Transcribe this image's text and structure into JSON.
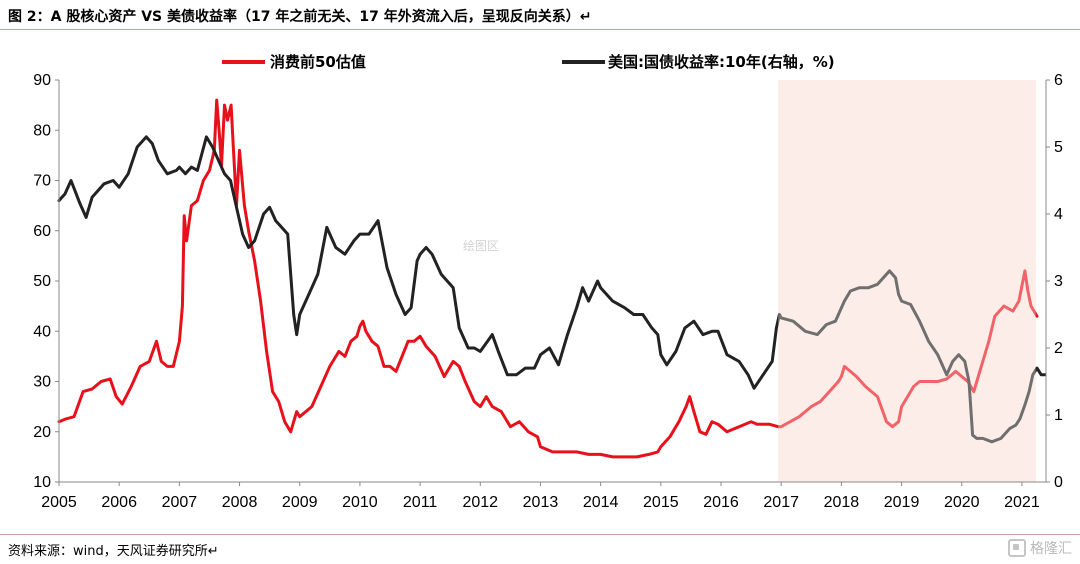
{
  "figure": {
    "title": "图 2：A 股核心资产  VS  美债收益率（17 年之前无关、17 年外资流入后，呈现反向关系）↵",
    "source": "资料来源：wind，天风证券研究所↵",
    "watermark": "绘图区",
    "corner_logo": "格隆汇"
  },
  "chart_data": {
    "type": "line",
    "x_axis": {
      "ticks": [
        "2005",
        "2006",
        "2007",
        "2008",
        "2009",
        "2010",
        "2011",
        "2012",
        "2013",
        "2014",
        "2015",
        "2016",
        "2017",
        "2018",
        "2019",
        "2020",
        "2021"
      ],
      "range": [
        2005.0,
        2021.4
      ]
    },
    "y_left": {
      "range": [
        10,
        90
      ],
      "ticks": [
        "10",
        "20",
        "30",
        "40",
        "50",
        "60",
        "70",
        "80",
        "90"
      ]
    },
    "y_right": {
      "range": [
        0,
        6
      ],
      "ticks": [
        "0",
        "1",
        "2",
        "3",
        "4",
        "5",
        "6"
      ]
    },
    "shaded_region": {
      "from": 2016.95,
      "to": 2021.23,
      "color": "#fce4dc"
    },
    "legend": {
      "position": "top-center"
    },
    "series": [
      {
        "name": "消费前50估值",
        "axis": "left",
        "color": "#e8101a",
        "points": [
          [
            2005.0,
            22
          ],
          [
            2005.1,
            22.5
          ],
          [
            2005.25,
            23
          ],
          [
            2005.4,
            28
          ],
          [
            2005.55,
            28.5
          ],
          [
            2005.7,
            30
          ],
          [
            2005.85,
            30.5
          ],
          [
            2005.95,
            27
          ],
          [
            2006.05,
            25.5
          ],
          [
            2006.2,
            29
          ],
          [
            2006.35,
            33
          ],
          [
            2006.5,
            34
          ],
          [
            2006.62,
            38
          ],
          [
            2006.7,
            34
          ],
          [
            2006.8,
            33
          ],
          [
            2006.9,
            33
          ],
          [
            2007.0,
            38
          ],
          [
            2007.05,
            45
          ],
          [
            2007.08,
            63
          ],
          [
            2007.12,
            58
          ],
          [
            2007.2,
            65
          ],
          [
            2007.3,
            66
          ],
          [
            2007.4,
            70
          ],
          [
            2007.5,
            72
          ],
          [
            2007.58,
            76
          ],
          [
            2007.62,
            86
          ],
          [
            2007.66,
            80
          ],
          [
            2007.7,
            73
          ],
          [
            2007.75,
            85
          ],
          [
            2007.8,
            82
          ],
          [
            2007.86,
            85
          ],
          [
            2007.9,
            76
          ],
          [
            2007.95,
            65
          ],
          [
            2008.0,
            76
          ],
          [
            2008.08,
            65
          ],
          [
            2008.15,
            60
          ],
          [
            2008.25,
            54
          ],
          [
            2008.35,
            46
          ],
          [
            2008.45,
            36
          ],
          [
            2008.55,
            28
          ],
          [
            2008.65,
            26
          ],
          [
            2008.75,
            22
          ],
          [
            2008.85,
            20
          ],
          [
            2008.95,
            24
          ],
          [
            2009.0,
            23
          ],
          [
            2009.2,
            25
          ],
          [
            2009.35,
            29
          ],
          [
            2009.5,
            33
          ],
          [
            2009.65,
            36
          ],
          [
            2009.75,
            35
          ],
          [
            2009.85,
            38
          ],
          [
            2009.95,
            39
          ],
          [
            2010.0,
            41
          ],
          [
            2010.05,
            42
          ],
          [
            2010.1,
            40
          ],
          [
            2010.2,
            38
          ],
          [
            2010.3,
            37
          ],
          [
            2010.4,
            33
          ],
          [
            2010.5,
            33
          ],
          [
            2010.6,
            32
          ],
          [
            2010.7,
            35
          ],
          [
            2010.8,
            38
          ],
          [
            2010.9,
            38
          ],
          [
            2011.0,
            39
          ],
          [
            2011.1,
            37
          ],
          [
            2011.25,
            35
          ],
          [
            2011.4,
            31
          ],
          [
            2011.55,
            34
          ],
          [
            2011.65,
            33
          ],
          [
            2011.75,
            30
          ],
          [
            2011.9,
            26
          ],
          [
            2012.0,
            25
          ],
          [
            2012.1,
            27
          ],
          [
            2012.2,
            25
          ],
          [
            2012.35,
            24
          ],
          [
            2012.5,
            21
          ],
          [
            2012.65,
            22
          ],
          [
            2012.8,
            20
          ],
          [
            2012.95,
            19
          ],
          [
            2013.0,
            17
          ],
          [
            2013.2,
            16
          ],
          [
            2013.4,
            16
          ],
          [
            2013.6,
            16
          ],
          [
            2013.8,
            15.5
          ],
          [
            2014.0,
            15.5
          ],
          [
            2014.2,
            15
          ],
          [
            2014.4,
            15
          ],
          [
            2014.6,
            15
          ],
          [
            2014.8,
            15.5
          ],
          [
            2014.95,
            16
          ],
          [
            2015.0,
            17
          ],
          [
            2015.15,
            19
          ],
          [
            2015.3,
            22
          ],
          [
            2015.42,
            25
          ],
          [
            2015.48,
            27
          ],
          [
            2015.55,
            24
          ],
          [
            2015.65,
            20
          ],
          [
            2015.75,
            19.5
          ],
          [
            2015.85,
            22
          ],
          [
            2015.95,
            21.5
          ],
          [
            2016.1,
            20
          ],
          [
            2016.3,
            21
          ],
          [
            2016.5,
            22
          ],
          [
            2016.6,
            21.5
          ],
          [
            2016.8,
            21.5
          ],
          [
            2016.95,
            21
          ],
          [
            2017.0,
            21
          ],
          [
            2017.15,
            22
          ],
          [
            2017.3,
            23
          ],
          [
            2017.5,
            25
          ],
          [
            2017.65,
            26
          ],
          [
            2017.8,
            28
          ],
          [
            2017.95,
            30
          ],
          [
            2018.0,
            31
          ],
          [
            2018.05,
            33
          ],
          [
            2018.15,
            32
          ],
          [
            2018.25,
            31
          ],
          [
            2018.4,
            29
          ],
          [
            2018.5,
            28
          ],
          [
            2018.6,
            27
          ],
          [
            2018.75,
            22
          ],
          [
            2018.85,
            21
          ],
          [
            2018.95,
            22
          ],
          [
            2019.0,
            25
          ],
          [
            2019.1,
            27
          ],
          [
            2019.2,
            29
          ],
          [
            2019.3,
            30
          ],
          [
            2019.45,
            30
          ],
          [
            2019.6,
            30
          ],
          [
            2019.75,
            30.5
          ],
          [
            2019.9,
            32
          ],
          [
            2020.0,
            31
          ],
          [
            2020.1,
            30
          ],
          [
            2020.2,
            28
          ],
          [
            2020.3,
            32
          ],
          [
            2020.45,
            38
          ],
          [
            2020.55,
            43
          ],
          [
            2020.7,
            45
          ],
          [
            2020.85,
            44
          ],
          [
            2020.95,
            46
          ],
          [
            2021.05,
            52
          ],
          [
            2021.1,
            48
          ],
          [
            2021.15,
            45
          ],
          [
            2021.2,
            44
          ],
          [
            2021.25,
            43
          ]
        ]
      },
      {
        "name": "美国:国债收益率:10年(右轴，%)",
        "axis": "right",
        "color": "#222222",
        "points": [
          [
            2005.0,
            4.2
          ],
          [
            2005.1,
            4.3
          ],
          [
            2005.2,
            4.5
          ],
          [
            2005.35,
            4.15
          ],
          [
            2005.45,
            3.95
          ],
          [
            2005.55,
            4.25
          ],
          [
            2005.75,
            4.45
          ],
          [
            2005.9,
            4.5
          ],
          [
            2006.0,
            4.4
          ],
          [
            2006.15,
            4.6
          ],
          [
            2006.3,
            5.0
          ],
          [
            2006.45,
            5.15
          ],
          [
            2006.55,
            5.05
          ],
          [
            2006.65,
            4.8
          ],
          [
            2006.8,
            4.6
          ],
          [
            2006.95,
            4.65
          ],
          [
            2007.0,
            4.7
          ],
          [
            2007.1,
            4.6
          ],
          [
            2007.2,
            4.7
          ],
          [
            2007.3,
            4.65
          ],
          [
            2007.45,
            5.15
          ],
          [
            2007.55,
            5.0
          ],
          [
            2007.65,
            4.8
          ],
          [
            2007.75,
            4.6
          ],
          [
            2007.85,
            4.5
          ],
          [
            2007.95,
            4.1
          ],
          [
            2008.05,
            3.7
          ],
          [
            2008.15,
            3.5
          ],
          [
            2008.25,
            3.6
          ],
          [
            2008.4,
            4.0
          ],
          [
            2008.5,
            4.1
          ],
          [
            2008.6,
            3.9
          ],
          [
            2008.7,
            3.8
          ],
          [
            2008.8,
            3.7
          ],
          [
            2008.9,
            2.5
          ],
          [
            2008.95,
            2.2
          ],
          [
            2009.0,
            2.5
          ],
          [
            2009.15,
            2.8
          ],
          [
            2009.3,
            3.1
          ],
          [
            2009.45,
            3.8
          ],
          [
            2009.6,
            3.5
          ],
          [
            2009.75,
            3.4
          ],
          [
            2009.9,
            3.6
          ],
          [
            2010.0,
            3.7
          ],
          [
            2010.15,
            3.7
          ],
          [
            2010.3,
            3.9
          ],
          [
            2010.45,
            3.2
          ],
          [
            2010.6,
            2.8
          ],
          [
            2010.75,
            2.5
          ],
          [
            2010.85,
            2.6
          ],
          [
            2010.95,
            3.3
          ],
          [
            2011.0,
            3.4
          ],
          [
            2011.1,
            3.5
          ],
          [
            2011.2,
            3.4
          ],
          [
            2011.35,
            3.1
          ],
          [
            2011.55,
            2.9
          ],
          [
            2011.65,
            2.3
          ],
          [
            2011.8,
            2.0
          ],
          [
            2011.9,
            2.0
          ],
          [
            2012.0,
            1.95
          ],
          [
            2012.2,
            2.2
          ],
          [
            2012.3,
            1.95
          ],
          [
            2012.45,
            1.6
          ],
          [
            2012.6,
            1.6
          ],
          [
            2012.75,
            1.7
          ],
          [
            2012.9,
            1.7
          ],
          [
            2013.0,
            1.9
          ],
          [
            2013.15,
            2.0
          ],
          [
            2013.3,
            1.75
          ],
          [
            2013.45,
            2.2
          ],
          [
            2013.6,
            2.6
          ],
          [
            2013.7,
            2.9
          ],
          [
            2013.8,
            2.7
          ],
          [
            2013.95,
            3.0
          ],
          [
            2014.0,
            2.9
          ],
          [
            2014.2,
            2.7
          ],
          [
            2014.4,
            2.6
          ],
          [
            2014.55,
            2.5
          ],
          [
            2014.7,
            2.5
          ],
          [
            2014.85,
            2.3
          ],
          [
            2014.95,
            2.2
          ],
          [
            2015.0,
            1.9
          ],
          [
            2015.1,
            1.75
          ],
          [
            2015.25,
            1.95
          ],
          [
            2015.4,
            2.3
          ],
          [
            2015.55,
            2.4
          ],
          [
            2015.7,
            2.2
          ],
          [
            2015.85,
            2.25
          ],
          [
            2015.95,
            2.25
          ],
          [
            2016.1,
            1.9
          ],
          [
            2016.3,
            1.8
          ],
          [
            2016.45,
            1.6
          ],
          [
            2016.55,
            1.4
          ],
          [
            2016.7,
            1.6
          ],
          [
            2016.85,
            1.8
          ],
          [
            2016.92,
            2.3
          ],
          [
            2016.97,
            2.5
          ],
          [
            2017.0,
            2.45
          ],
          [
            2017.2,
            2.4
          ],
          [
            2017.4,
            2.25
          ],
          [
            2017.6,
            2.2
          ],
          [
            2017.75,
            2.35
          ],
          [
            2017.9,
            2.4
          ],
          [
            2018.05,
            2.7
          ],
          [
            2018.15,
            2.85
          ],
          [
            2018.3,
            2.9
          ],
          [
            2018.45,
            2.9
          ],
          [
            2018.6,
            2.95
          ],
          [
            2018.8,
            3.15
          ],
          [
            2018.9,
            3.05
          ],
          [
            2018.95,
            2.8
          ],
          [
            2019.0,
            2.7
          ],
          [
            2019.15,
            2.65
          ],
          [
            2019.3,
            2.4
          ],
          [
            2019.45,
            2.1
          ],
          [
            2019.6,
            1.9
          ],
          [
            2019.75,
            1.6
          ],
          [
            2019.85,
            1.8
          ],
          [
            2019.95,
            1.9
          ],
          [
            2020.05,
            1.8
          ],
          [
            2020.12,
            1.5
          ],
          [
            2020.18,
            0.7
          ],
          [
            2020.25,
            0.65
          ],
          [
            2020.35,
            0.65
          ],
          [
            2020.5,
            0.6
          ],
          [
            2020.65,
            0.65
          ],
          [
            2020.8,
            0.8
          ],
          [
            2020.9,
            0.85
          ],
          [
            2020.97,
            0.95
          ],
          [
            2021.05,
            1.15
          ],
          [
            2021.12,
            1.35
          ],
          [
            2021.18,
            1.6
          ],
          [
            2021.25,
            1.7
          ],
          [
            2021.32,
            1.6
          ],
          [
            2021.38,
            1.6
          ]
        ]
      }
    ]
  }
}
